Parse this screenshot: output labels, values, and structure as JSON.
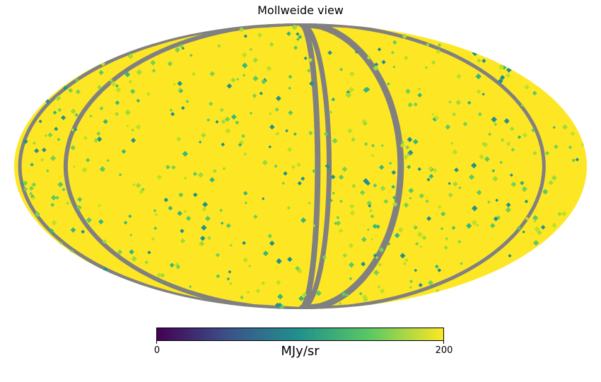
{
  "title": "Mollweide view",
  "colorbar": {
    "min_label": "0",
    "max_label": "200",
    "unit": "MJy/sr",
    "cmap": "viridis",
    "bad_color": "#808080",
    "stops": [
      "#440154",
      "#3b528b",
      "#21918c",
      "#5ec962",
      "#fde725"
    ]
  },
  "chart_data": {
    "type": "heatmap",
    "projection": "mollweide",
    "title": "Mollweide view",
    "colorbar_label": "MJy/sr",
    "vmin": 0,
    "vmax": 200,
    "dominant_value": 200
  }
}
